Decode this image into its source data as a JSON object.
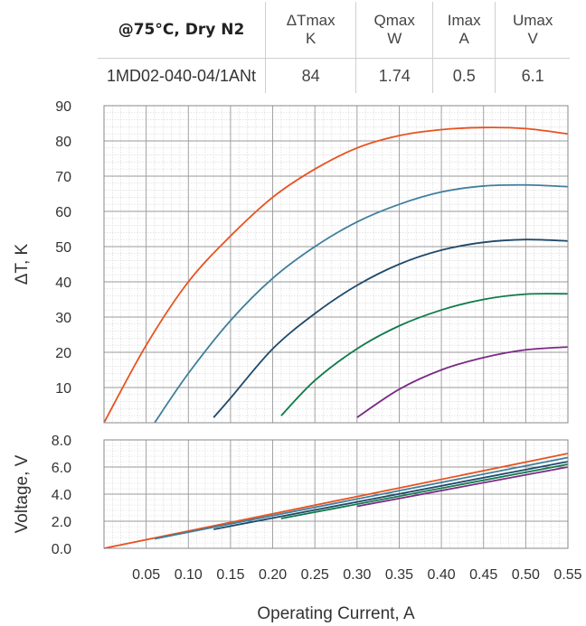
{
  "spec_table": {
    "condition": "@75°C, Dry N2",
    "headers": [
      {
        "name": "ΔTmax",
        "unit": "K"
      },
      {
        "name": "Qmax",
        "unit": "W"
      },
      {
        "name": "Imax",
        "unit": "A"
      },
      {
        "name": "Umax",
        "unit": "V"
      }
    ],
    "model": "1MD02-040-04/1ANt",
    "values": [
      "84",
      "1.74",
      "0.5",
      "6.1"
    ]
  },
  "chart_data": [
    {
      "type": "line",
      "ylabel": "ΔT, K",
      "xlim": [
        0,
        0.55
      ],
      "ylim": [
        0,
        90
      ],
      "yticks": [
        "10",
        "20",
        "30",
        "40",
        "50",
        "60",
        "70",
        "80",
        "90"
      ],
      "grid": true,
      "series": [
        {
          "color": "#e8521f",
          "x": [
            0.0,
            0.05,
            0.1,
            0.15,
            0.2,
            0.25,
            0.3,
            0.35,
            0.4,
            0.45,
            0.5,
            0.55
          ],
          "y": [
            0,
            22,
            40,
            53,
            64,
            72,
            78,
            81.5,
            83.2,
            83.8,
            83.5,
            82
          ]
        },
        {
          "color": "#3f7f9c",
          "x": [
            0.06,
            0.1,
            0.15,
            0.2,
            0.25,
            0.3,
            0.35,
            0.4,
            0.45,
            0.5,
            0.55
          ],
          "y": [
            0,
            14,
            29,
            41,
            50,
            57,
            62,
            65.5,
            67.2,
            67.5,
            67
          ]
        },
        {
          "color": "#1f4a6b",
          "x": [
            0.13,
            0.15,
            0.2,
            0.25,
            0.3,
            0.35,
            0.4,
            0.45,
            0.5,
            0.55
          ],
          "y": [
            1.5,
            7,
            21,
            31,
            39,
            45,
            49,
            51.2,
            52,
            51.6
          ]
        },
        {
          "color": "#0f7a4a",
          "x": [
            0.21,
            0.25,
            0.3,
            0.35,
            0.4,
            0.45,
            0.5,
            0.55
          ],
          "y": [
            2,
            12,
            21,
            27.5,
            32,
            35,
            36.5,
            36.6
          ]
        },
        {
          "color": "#7a2a85",
          "x": [
            0.3,
            0.35,
            0.4,
            0.45,
            0.5,
            0.55
          ],
          "y": [
            1.5,
            9.5,
            15,
            18.5,
            20.7,
            21.5
          ]
        }
      ]
    },
    {
      "type": "line",
      "xlabel": "Operating Current, A",
      "ylabel": "Voltage, V",
      "xlim": [
        0,
        0.55
      ],
      "ylim": [
        0,
        8
      ],
      "xticks": [
        "0.05",
        "0.10",
        "0.15",
        "0.20",
        "0.25",
        "0.30",
        "0.35",
        "0.40",
        "0.45",
        "0.50",
        "0.55"
      ],
      "yticks": [
        "0.0",
        "2.0",
        "4.0",
        "6.0",
        "8.0"
      ],
      "grid": true,
      "series": [
        {
          "color": "#e8521f",
          "x": [
            0.0,
            0.55
          ],
          "y": [
            0.0,
            7.0
          ]
        },
        {
          "color": "#3f7f9c",
          "x": [
            0.06,
            0.55
          ],
          "y": [
            0.7,
            6.7
          ]
        },
        {
          "color": "#1f4a6b",
          "x": [
            0.13,
            0.55
          ],
          "y": [
            1.4,
            6.4
          ]
        },
        {
          "color": "#0f7a4a",
          "x": [
            0.21,
            0.55
          ],
          "y": [
            2.2,
            6.2
          ]
        },
        {
          "color": "#7a2a85",
          "x": [
            0.3,
            0.55
          ],
          "y": [
            3.1,
            6.0
          ]
        }
      ]
    }
  ]
}
